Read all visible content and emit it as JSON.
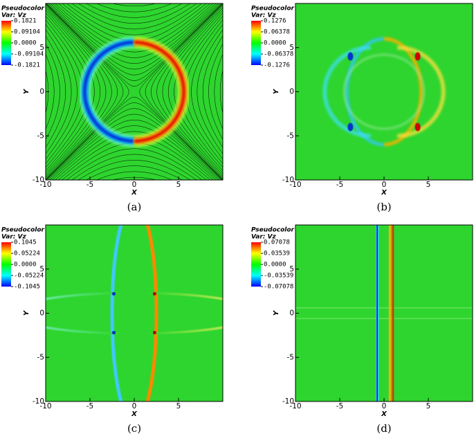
{
  "chart_data": [
    {
      "type": "pseudocolor",
      "caption": "(a)",
      "legend_title": "Pseudocolor",
      "legend_var": "Var: Vz",
      "xlabel": "X",
      "ylabel": "Y",
      "xlim": [
        -10,
        10
      ],
      "ylim": [
        -10,
        10
      ],
      "xticks": [
        -10,
        -5,
        0,
        5
      ],
      "yticks": [
        -10,
        -5,
        0,
        5
      ],
      "colorbar_ticks": [
        0.1821,
        0.09104,
        {
          "value": 0,
          "label": "0.0000"
        },
        -0.09104,
        -0.1821
      ]
    },
    {
      "type": "pseudocolor",
      "caption": "(b)",
      "legend_title": "Pseudocolor",
      "legend_var": "Var: Vz",
      "xlabel": "X",
      "ylabel": "Y",
      "xlim": [
        -10,
        10
      ],
      "ylim": [
        -10,
        10
      ],
      "xticks": [
        -10,
        -5,
        0,
        5
      ],
      "yticks": [
        -10,
        -5,
        0,
        5
      ],
      "colorbar_ticks": [
        0.1276,
        0.06378,
        {
          "value": 0,
          "label": "0.0000"
        },
        -0.06378,
        -0.1276
      ]
    },
    {
      "type": "pseudocolor",
      "caption": "(c)",
      "legend_title": "Pseudocolor",
      "legend_var": "Var: Vz",
      "xlabel": "X",
      "ylabel": "Y",
      "xlim": [
        -10,
        10
      ],
      "ylim": [
        -10,
        10
      ],
      "xticks": [
        -10,
        -5,
        0,
        5
      ],
      "yticks": [
        -10,
        -5,
        0,
        5
      ],
      "colorbar_ticks": [
        0.1045,
        0.05224,
        {
          "value": 0,
          "label": "0.0000"
        },
        -0.05224,
        -0.1045
      ]
    },
    {
      "type": "pseudocolor",
      "caption": "(d)",
      "legend_title": "Pseudocolor",
      "legend_var": "Var: Vz",
      "xlabel": "X",
      "ylabel": "Y",
      "xlim": [
        -10,
        10
      ],
      "ylim": [
        -10,
        10
      ],
      "xticks": [
        -10,
        -5,
        0,
        5
      ],
      "yticks": [
        -10,
        -5,
        0,
        5
      ],
      "colorbar_ticks": [
        0.07078,
        0.03539,
        {
          "value": 0,
          "label": "0.0000"
        },
        -0.03539,
        -0.07078
      ]
    }
  ]
}
